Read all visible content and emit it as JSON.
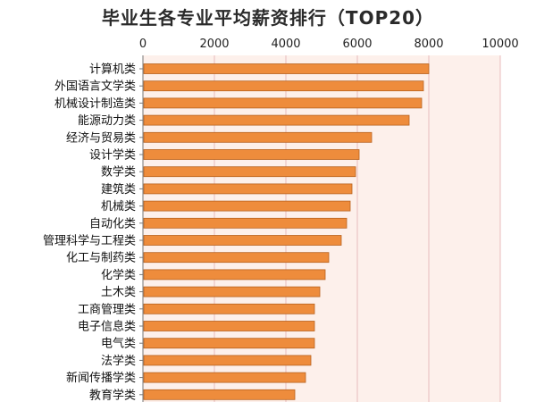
{
  "chart_data": {
    "type": "bar",
    "orientation": "horizontal",
    "title": "毕业生各专业平均薪资排行（TOP20）",
    "categories": [
      "计算机类",
      "外国语言文学类",
      "机械设计制造类",
      "能源动力类",
      "经济与贸易类",
      "设计学类",
      "数学类",
      "建筑类",
      "机械类",
      "自动化类",
      "管理科学与工程类",
      "化工与制药类",
      "化学类",
      "土木类",
      "工商管理类",
      "电子信息类",
      "电气类",
      "法学类",
      "新闻传播学类",
      "教育学类"
    ],
    "values": [
      8000,
      7850,
      7800,
      7450,
      6400,
      6050,
      5950,
      5850,
      5800,
      5700,
      5550,
      5200,
      5100,
      4950,
      4800,
      4800,
      4800,
      4700,
      4550,
      4250
    ],
    "xlim": [
      0,
      10000
    ],
    "xticks": [
      "0",
      "2000",
      "4000",
      "6000",
      "8000",
      "10000"
    ],
    "xtick_values": [
      0,
      2000,
      4000,
      6000,
      8000,
      10000
    ],
    "xaxis_position": "top",
    "grid": true,
    "bar_color": "#ee8c3c",
    "bar_edge_color": "#b8621e",
    "plot_background": "#fdf0eb",
    "grid_color": "#e8bcbc"
  }
}
